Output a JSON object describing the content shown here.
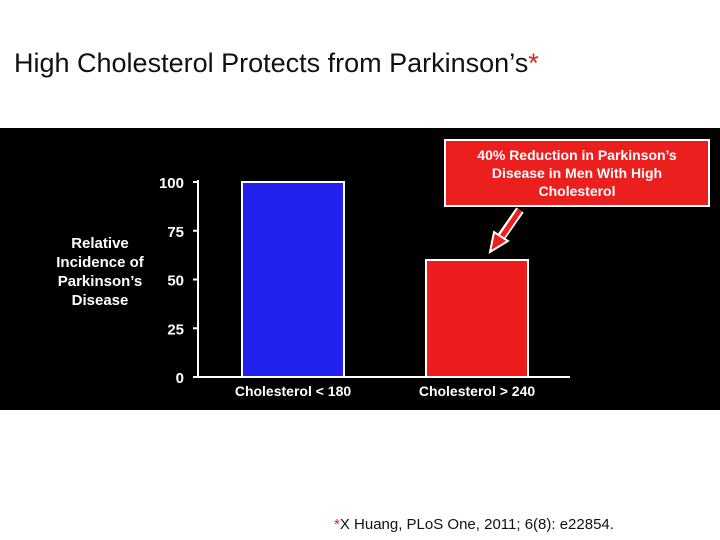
{
  "slide": {
    "title": "High Cholesterol Protects from Parkinson’s",
    "title_marker": "*",
    "citation_marker": "*",
    "citation": "X Huang, PLoS One, 2011; 6(8): e22854."
  },
  "callout": {
    "text": "40% Reduction in Parkinson’s\nDisease in Men With High\nCholesterol"
  },
  "chart_data": {
    "type": "bar",
    "categories": [
      "Cholesterol < 180",
      "Cholesterol > 240"
    ],
    "values": [
      100,
      60
    ],
    "ylabel": "Relative\nIncidence of\nParkinson’s\nDisease",
    "xlabel": "",
    "ylim": [
      0,
      100
    ],
    "yticks": [
      0,
      25,
      50,
      75,
      100
    ],
    "grid": false,
    "bar_colors": [
      "#2222ee",
      "#ee1c1c"
    ],
    "background": "#000000"
  }
}
